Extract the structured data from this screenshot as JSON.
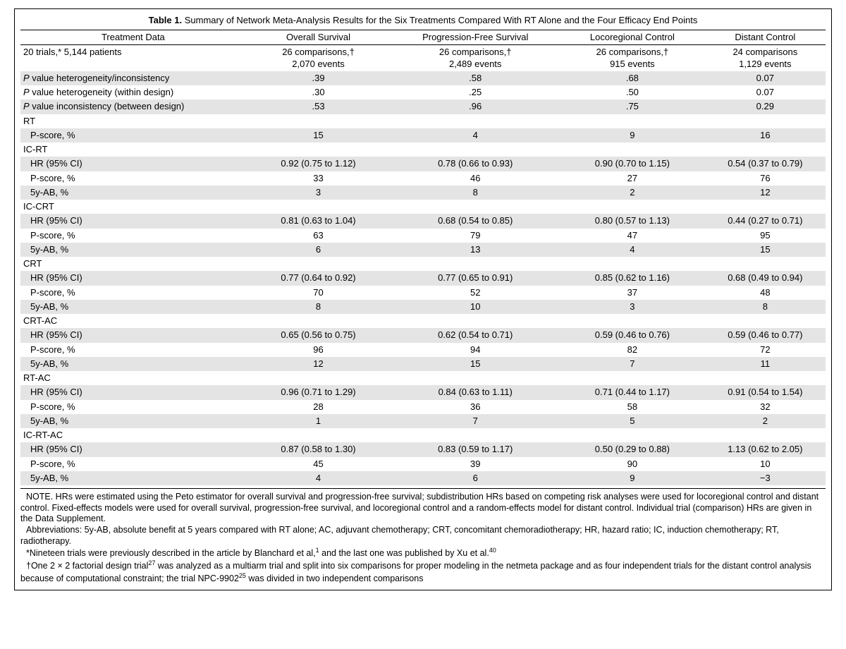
{
  "caption": {
    "label": "Table 1.",
    "text": "Summary of Network Meta-Analysis Results for the Six Treatments Compared With RT Alone and the Four Efficacy End Points"
  },
  "columns": {
    "c0": "Treatment Data",
    "c1": "Overall Survival",
    "c2": "Progression-Free Survival",
    "c3": "Locoregional Control",
    "c4": "Distant Control"
  },
  "col_widths": [
    "28%",
    "18%",
    "21%",
    "18%",
    "15%"
  ],
  "rows": [
    {
      "shade": false,
      "lbl": "20 trials,* 5,144 patients",
      "c1": "26 comparisons,†\n2,070 events",
      "c2": "26 comparisons,†\n2,489 events",
      "c3": "26 comparisons,†\n915 events",
      "c4": "24 comparisons\n1,129 events"
    },
    {
      "shade": true,
      "lbl": "P value heterogeneity/inconsistency",
      "c1": ".39",
      "c2": ".58",
      "c3": ".68",
      "c4": "0.07"
    },
    {
      "shade": false,
      "lbl": "P value heterogeneity (within design)",
      "c1": ".30",
      "c2": ".25",
      "c3": ".50",
      "c4": "0.07"
    },
    {
      "shade": true,
      "lbl": "P value inconsistency (between design)",
      "c1": ".53",
      "c2": ".96",
      "c3": ".75",
      "c4": "0.29"
    },
    {
      "shade": false,
      "lbl": "RT"
    },
    {
      "shade": true,
      "sub": true,
      "lbl": "P-score, %",
      "c1": "15",
      "c2": "4",
      "c3": "9",
      "c4": "16"
    },
    {
      "shade": false,
      "lbl": "IC-RT"
    },
    {
      "shade": true,
      "sub": true,
      "lbl": "HR (95% CI)",
      "c1": "0.92 (0.75 to 1.12)",
      "c2": "0.78 (0.66 to 0.93)",
      "c3": "0.90 (0.70 to 1.15)",
      "c4": "0.54 (0.37 to 0.79)"
    },
    {
      "shade": false,
      "sub": true,
      "lbl": "P-score, %",
      "c1": "33",
      "c2": "46",
      "c3": "27",
      "c4": "76"
    },
    {
      "shade": true,
      "sub": true,
      "lbl": "5y-AB, %",
      "c1": "3",
      "c2": "8",
      "c3": "2",
      "c4": "12"
    },
    {
      "shade": false,
      "lbl": "IC-CRT"
    },
    {
      "shade": true,
      "sub": true,
      "lbl": "HR (95% CI)",
      "c1": "0.81 (0.63 to 1.04)",
      "c2": "0.68 (0.54 to 0.85)",
      "c3": "0.80 (0.57 to 1.13)",
      "c4": "0.44 (0.27 to 0.71)"
    },
    {
      "shade": false,
      "sub": true,
      "lbl": "P-score, %",
      "c1": "63",
      "c2": "79",
      "c3": "47",
      "c4": "95"
    },
    {
      "shade": true,
      "sub": true,
      "lbl": "5y-AB, %",
      "c1": "6",
      "c2": "13",
      "c3": "4",
      "c4": "15"
    },
    {
      "shade": false,
      "lbl": "CRT"
    },
    {
      "shade": true,
      "sub": true,
      "lbl": "HR (95% CI)",
      "c1": "0.77 (0.64 to 0.92)",
      "c2": "0.77 (0.65 to 0.91)",
      "c3": "0.85 (0.62 to 1.16)",
      "c4": "0.68 (0.49 to 0.94)"
    },
    {
      "shade": false,
      "sub": true,
      "lbl": "P-score, %",
      "c1": "70",
      "c2": "52",
      "c3": "37",
      "c4": "48"
    },
    {
      "shade": true,
      "sub": true,
      "lbl": "5y-AB, %",
      "c1": "8",
      "c2": "10",
      "c3": "3",
      "c4": "8"
    },
    {
      "shade": false,
      "lbl": "CRT-AC"
    },
    {
      "shade": true,
      "sub": true,
      "lbl": "HR (95% CI)",
      "c1": "0.65 (0.56 to 0.75)",
      "c2": "0.62 (0.54 to 0.71)",
      "c3": "0.59 (0.46 to 0.76)",
      "c4": "0.59 (0.46 to 0.77)"
    },
    {
      "shade": false,
      "sub": true,
      "lbl": "P-score, %",
      "c1": "96",
      "c2": "94",
      "c3": "82",
      "c4": "72"
    },
    {
      "shade": true,
      "sub": true,
      "lbl": "5y-AB, %",
      "c1": "12",
      "c2": "15",
      "c3": "7",
      "c4": "11"
    },
    {
      "shade": false,
      "lbl": "RT-AC"
    },
    {
      "shade": true,
      "sub": true,
      "lbl": "HR (95% CI)",
      "c1": "0.96 (0.71 to 1.29)",
      "c2": "0.84 (0.63 to 1.11)",
      "c3": "0.71 (0.44 to 1.17)",
      "c4": "0.91 (0.54 to 1.54)"
    },
    {
      "shade": false,
      "sub": true,
      "lbl": "P-score, %",
      "c1": "28",
      "c2": "36",
      "c3": "58",
      "c4": "32"
    },
    {
      "shade": true,
      "sub": true,
      "lbl": "5y-AB, %",
      "c1": "1",
      "c2": "7",
      "c3": "5",
      "c4": "2"
    },
    {
      "shade": false,
      "lbl": "IC-RT-AC"
    },
    {
      "shade": true,
      "sub": true,
      "lbl": "HR (95% CI)",
      "c1": "0.87 (0.58 to 1.30)",
      "c2": "0.83 (0.59 to 1.17)",
      "c3": "0.50 (0.29 to 0.88)",
      "c4": "1.13 (0.62 to 2.05)"
    },
    {
      "shade": false,
      "sub": true,
      "lbl": "P-score, %",
      "c1": "45",
      "c2": "39",
      "c3": "90",
      "c4": "10"
    },
    {
      "shade": true,
      "sub": true,
      "lbl": "5y-AB, %",
      "c1": "4",
      "c2": "6",
      "c3": "9",
      "c4": "−3"
    }
  ],
  "notes": {
    "p1": "NOTE. HRs were estimated using the Peto estimator for overall survival and progression-free survival; subdistribution HRs based on competing risk analyses were used for locoregional control and distant control. Fixed-effects models were used for overall survival, progression-free survival, and locoregional control and a random-effects model for distant control. Individual trial (comparison) HRs are given in the Data Supplement.",
    "p2": "Abbreviations: 5y-AB, absolute benefit at 5 years compared with RT alone; AC, adjuvant chemotherapy; CRT, concomitant chemoradiotherapy; HR, hazard ratio; IC, induction chemotherapy; RT, radiotherapy.",
    "p3_pre": "*Nineteen trials were previously described in the article by Blanchard et al,",
    "p3_sup1": "1",
    "p3_mid": " and the last one was published by Xu et al.",
    "p3_sup2": "40",
    "p4_pre": "†One 2 × 2 factorial design trial",
    "p4_sup1": "27",
    "p4_mid": " was analyzed as a multiarm trial and split into six comparisons for proper modeling in the netmeta package and as four independent trials for the distant control analysis because of computational constraint; the trial NPC-9902",
    "p4_sup2": "25",
    "p4_end": " was divided in two independent comparisons"
  },
  "style": {
    "font_size_pt": 13,
    "note_font_size_pt": 12.5,
    "shade_color": "#e4e4e4",
    "border_color": "#000000",
    "background_color": "#ffffff",
    "italic_cols": [
      "P"
    ]
  }
}
